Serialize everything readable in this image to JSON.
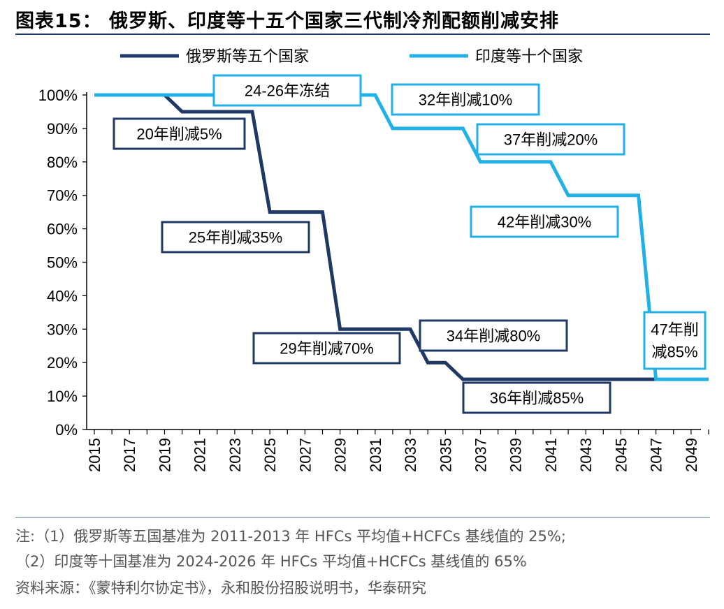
{
  "header": {
    "title": "图表15：  俄罗斯、印度等十五个国家三代制冷剂配额削减安排"
  },
  "chart_data": {
    "type": "line",
    "title": "俄罗斯、印度等十五个国家三代制冷剂配额削减安排",
    "xlabel": "",
    "ylabel": "",
    "xlim": [
      2015,
      2050
    ],
    "ylim": [
      0,
      100
    ],
    "x_ticks": [
      "2015",
      "2017",
      "2019",
      "2021",
      "2023",
      "2025",
      "2027",
      "2029",
      "2031",
      "2033",
      "2035",
      "2037",
      "2039",
      "2041",
      "2043",
      "2045",
      "2047",
      "2049"
    ],
    "y_ticks": [
      "0%",
      "10%",
      "20%",
      "30%",
      "40%",
      "50%",
      "60%",
      "70%",
      "80%",
      "90%",
      "100%"
    ],
    "legend_position": "top",
    "series": [
      {
        "name": "俄罗斯等五个国家",
        "color": "#1f3864",
        "points": [
          [
            2015,
            100
          ],
          [
            2019,
            100
          ],
          [
            2020,
            95
          ],
          [
            2024,
            95
          ],
          [
            2025,
            65
          ],
          [
            2028,
            65
          ],
          [
            2029,
            30
          ],
          [
            2033,
            30
          ],
          [
            2034,
            20
          ],
          [
            2035,
            20
          ],
          [
            2036,
            15
          ],
          [
            2047,
            15
          ]
        ]
      },
      {
        "name": "印度等十个国家",
        "color": "#22b1e6",
        "points": [
          [
            2015,
            100
          ],
          [
            2031,
            100
          ],
          [
            2032,
            90
          ],
          [
            2036,
            90
          ],
          [
            2037,
            80
          ],
          [
            2041,
            80
          ],
          [
            2042,
            70
          ],
          [
            2046,
            70
          ],
          [
            2047,
            15
          ],
          [
            2050,
            15
          ]
        ]
      }
    ],
    "annotations": [
      {
        "text": "20年削减5%",
        "series": 0
      },
      {
        "text": "25年削减35%",
        "series": 0
      },
      {
        "text": "29年削减70%",
        "series": 0
      },
      {
        "text": "34年削减80%",
        "series": 0
      },
      {
        "text": "36年削减85%",
        "series": 0
      },
      {
        "text": "24-26年冻结",
        "series": 1
      },
      {
        "text": "32年削减10%",
        "series": 1
      },
      {
        "text": "37年削减20%",
        "series": 1
      },
      {
        "text": "42年削减30%",
        "series": 1
      },
      {
        "text": "47年削\n减85%",
        "series": 1
      }
    ]
  },
  "footer": {
    "note1": "注:（1）俄罗斯等五国基准为 2011-2013 年 HFCs 平均值+HCFCs 基线值的 25%;",
    "note2": "（2）印度等十国基准为 2024-2026 年 HFCs 平均值+HCFCs 基线值的 65%",
    "source": "资料来源：《蒙特利尔协定书》，永和股份招股说明书，华泰研究"
  }
}
